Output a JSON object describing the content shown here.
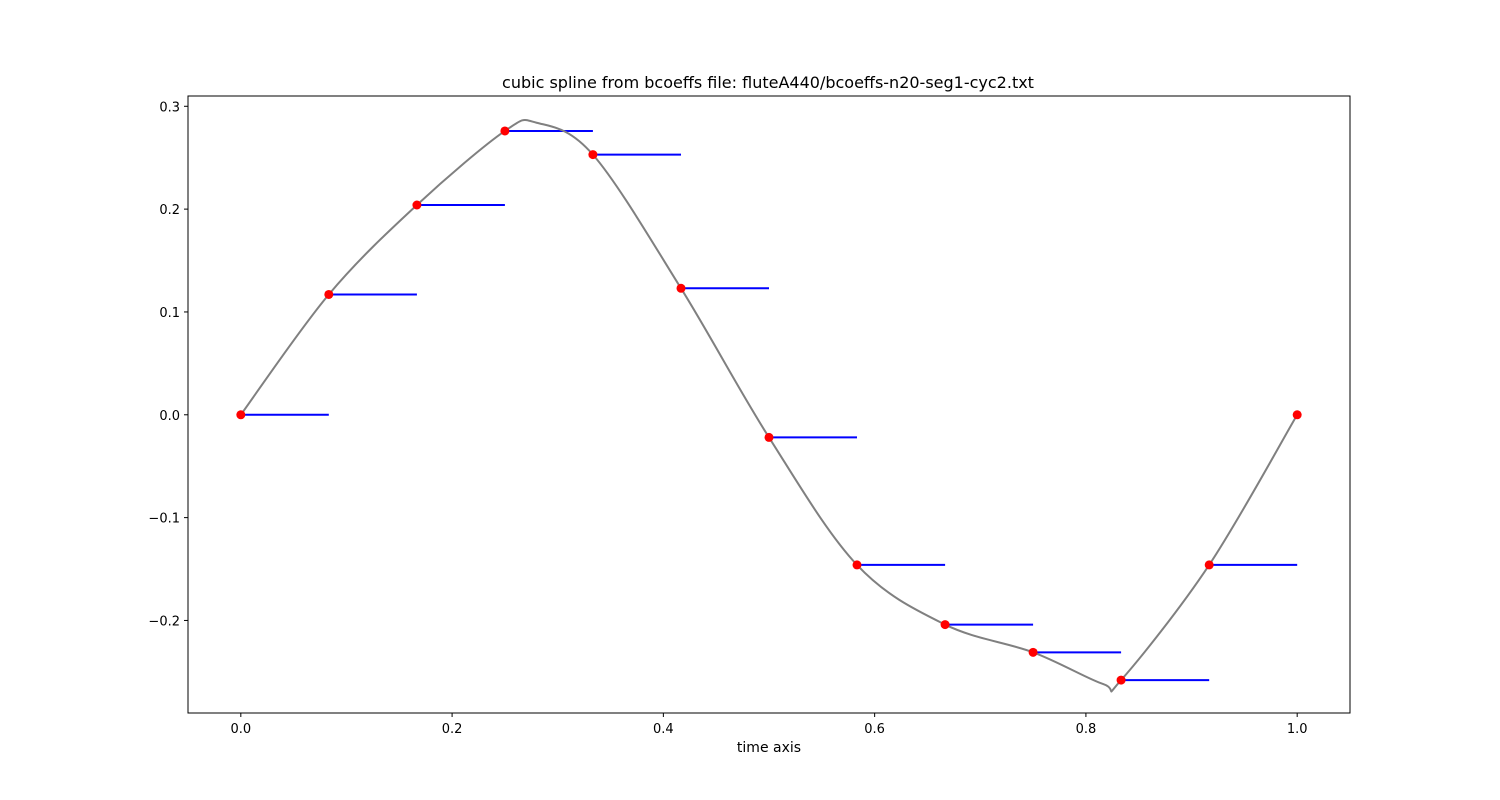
{
  "chart_data": {
    "type": "line",
    "title": "cubic spline from bcoeffs file: fluteA440/bcoeffs-n20-seg1-cyc2.txt",
    "xlabel": "time axis",
    "ylabel": "",
    "xlim": [
      -0.05,
      1.05
    ],
    "ylim": [
      -0.29,
      0.31
    ],
    "x_ticks": [
      0.0,
      0.2,
      0.4,
      0.6,
      0.8,
      1.0
    ],
    "x_tick_labels": [
      "0.0",
      "0.2",
      "0.4",
      "0.6",
      "0.8",
      "1.0"
    ],
    "y_ticks": [
      -0.2,
      -0.1,
      0.0,
      0.1,
      0.2,
      0.3
    ],
    "y_tick_labels": [
      "−0.2",
      "−0.1",
      "0.0",
      "0.1",
      "0.2",
      "0.3"
    ],
    "grid": false,
    "legend": "none",
    "series": [
      {
        "kind": "spline-curve",
        "color": "#808080",
        "x": [
          0.0,
          0.0833,
          0.1667,
          0.25,
          0.28,
          0.3333,
          0.4167,
          0.5,
          0.5833,
          0.6667,
          0.75,
          0.8167,
          0.8333,
          0.9167,
          1.0
        ],
        "y": [
          0.0,
          0.117,
          0.204,
          0.276,
          0.284,
          0.253,
          0.123,
          -0.022,
          -0.146,
          -0.204,
          -0.231,
          -0.262,
          -0.258,
          -0.146,
          0.0
        ]
      },
      {
        "kind": "knot-points",
        "color": "#ff0000",
        "x": [
          0.0,
          0.0833,
          0.1667,
          0.25,
          0.3333,
          0.4167,
          0.5,
          0.5833,
          0.6667,
          0.75,
          0.8333,
          0.9167,
          1.0
        ],
        "y": [
          0.0,
          0.117,
          0.204,
          0.276,
          0.253,
          0.123,
          -0.022,
          -0.146,
          -0.204,
          -0.231,
          -0.258,
          -0.146,
          0.0
        ]
      },
      {
        "kind": "step-segments",
        "color": "#0000ff",
        "x_start": [
          0.0,
          0.0833,
          0.1667,
          0.25,
          0.3333,
          0.4167,
          0.5,
          0.5833,
          0.6667,
          0.75,
          0.8333,
          0.9167
        ],
        "x_end": [
          0.0833,
          0.1667,
          0.25,
          0.3333,
          0.4167,
          0.5,
          0.5833,
          0.6667,
          0.75,
          0.8333,
          0.9167,
          1.0
        ],
        "y": [
          0.0,
          0.117,
          0.204,
          0.276,
          0.253,
          0.123,
          -0.022,
          -0.146,
          -0.204,
          -0.231,
          -0.258,
          -0.146
        ]
      }
    ]
  }
}
